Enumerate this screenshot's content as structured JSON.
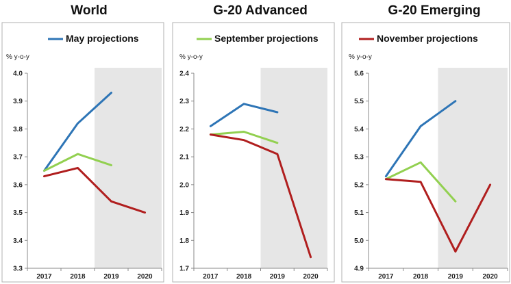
{
  "chart_data": [
    {
      "type": "line",
      "title": "World",
      "unit_label": "% y-o-y",
      "x": [
        "2017",
        "2018",
        "2019",
        "2020"
      ],
      "ylim": [
        3.3,
        4.0
      ],
      "yticks": [
        "3.3",
        "3.4",
        "3.5",
        "3.6",
        "3.7",
        "3.8",
        "3.9",
        "4.0"
      ],
      "shaded_from": "2019",
      "legend_series": 0,
      "series": [
        {
          "name": "May projections",
          "color": "#2e75b6",
          "values": [
            3.65,
            3.82,
            3.93,
            null
          ]
        },
        {
          "name": "September projections",
          "color": "#92d050",
          "values": [
            3.65,
            3.71,
            3.67,
            null
          ]
        },
        {
          "name": "November projections",
          "color": "#b01e1e",
          "values": [
            3.63,
            3.66,
            3.54,
            3.5
          ]
        }
      ]
    },
    {
      "type": "line",
      "title": "G-20 Advanced",
      "unit_label": "% y-o-y",
      "x": [
        "2017",
        "2018",
        "2019",
        "2020"
      ],
      "ylim": [
        1.7,
        2.4
      ],
      "yticks": [
        "1.7",
        "1.8",
        "1.9",
        "2.0",
        "2.1",
        "2.2",
        "2.3",
        "2.4"
      ],
      "shaded_from": "2019",
      "legend_series": 1,
      "series": [
        {
          "name": "May projections",
          "color": "#2e75b6",
          "values": [
            2.21,
            2.29,
            2.26,
            null
          ]
        },
        {
          "name": "September projections",
          "color": "#92d050",
          "values": [
            2.18,
            2.19,
            2.15,
            null
          ]
        },
        {
          "name": "November projections",
          "color": "#b01e1e",
          "values": [
            2.18,
            2.16,
            2.11,
            1.74
          ]
        }
      ]
    },
    {
      "type": "line",
      "title": "G-20 Emerging",
      "unit_label": "% y-o-y",
      "x": [
        "2017",
        "2018",
        "2019",
        "2020"
      ],
      "ylim": [
        4.9,
        5.6
      ],
      "yticks": [
        "4.9",
        "5.0",
        "5.1",
        "5.2",
        "5.3",
        "5.4",
        "5.5",
        "5.6"
      ],
      "shaded_from": "2019",
      "legend_series": 2,
      "series": [
        {
          "name": "May projections",
          "color": "#2e75b6",
          "values": [
            5.23,
            5.41,
            5.5,
            null
          ]
        },
        {
          "name": "September projections",
          "color": "#92d050",
          "values": [
            5.22,
            5.28,
            5.14,
            null
          ]
        },
        {
          "name": "November projections",
          "color": "#b01e1e",
          "values": [
            5.22,
            5.21,
            4.96,
            5.2
          ]
        }
      ]
    }
  ]
}
